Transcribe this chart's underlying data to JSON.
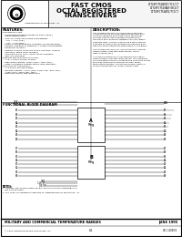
{
  "title_line1": "FAST CMOS",
  "title_line2": "OCTAL REGISTERED",
  "title_line3": "TRANSCEIVERS",
  "part_numbers": [
    "IDT29FCT52ATQF/TC1/CT",
    "IDT29FCT52SAQF/BC1CT",
    "IDT29FCT52ATQ/TC1CT"
  ],
  "features_title": "FEATURES:",
  "features": [
    "Exceptionally fast:",
    " - Input/output/output leakage of ±5μA (max.)",
    " - CMOS power levels",
    " - True TTL input and output compatibility",
    "   - VIH = 2.0V (typ.)",
    "   - VOL = 0.5V (typ.)",
    " - Meets or exceeds JEDEC standard 18 specifications",
    " - Product available in Radiation 1 Series and Radiation",
    "   Enhanced versions",
    " - Military product conforms to MIL-STD-883, Class B",
    "   and DESC listed (dual marked)",
    " - Available in SIP, SOIC, SSOP, QSOP, DIP/PDIP",
    "   and LCC packages",
    "Features two MOS transistor pull:",
    " - A, B, C and G control grades",
    " - High drive outputs: 24mA (6mA, 12mA typ.)",
    " - Power of disable outputs select \"bus retention\"",
    "Excellent for 1553/1553T:",
    " - A, B and G system grades",
    " - Receive outputs: +1mA (min. 12mA typ., 6mA typ.)",
    "   +4mA (min. 12mA typ., 8B1.)",
    " - Reduced system switching noise"
  ],
  "desc_title": "DESCRIPTION:",
  "desc_lines": [
    "The IDT29FCT52ATRC1/CT and IDT29FCT52ATIS1-",
    "CT are B-S pin-to-pin compatible transceivers built",
    "using an advanced dual metal CMOS technology.",
    "Fast-Bus back-to-back registers simultaneously",
    "running in both directions between two subsystems.",
    "Separate store, communication and B state outputs",
    "available externally are provided for maximun Bus A",
    "transfers and B outputs are guaranteed to sink B4mA.",
    "",
    "The IDT29FCT52ATRC1/CT has autonomous outputs",
    "approximately 10ns switching options, similar",
    "IDT29FCT52BT1/BC1.",
    "",
    "As a bus/FCT52BT1C1/CT has autonomous outputs",
    "approximately 10ns switching options. This advanced",
    "pin compatible minimal undefined and controlled output",
    "fall times reducing the need for external series",
    "terminating resistors. The IDT29FCT52BG1 part is a",
    "plug-in replacement for IDT29FCT52BT1 part."
  ],
  "block_diagram_title": "FUNCTIONAL BLOCK DIAGRAM",
  "block_diagram_super": "2,3",
  "left_labels_top": [
    "OEA",
    "OEB",
    "A0",
    "A1",
    "A2",
    "A3",
    "A4",
    "A5",
    "A6",
    "A7"
  ],
  "right_labels_top": [
    "SAB",
    "B0",
    "B1",
    "B2",
    "B3",
    "B4",
    "B5",
    "B6",
    "B7"
  ],
  "left_labels_bot": [
    "OEB",
    "B0",
    "B1",
    "B2",
    "B3",
    "B4",
    "B5",
    "B6",
    "B7"
  ],
  "right_labels_bot": [
    "A0",
    "A1",
    "A2",
    "A3",
    "A4",
    "A5",
    "A6",
    "A7"
  ],
  "ctrl_labels": [
    "CLK",
    "OE",
    "CLK SP",
    "OE SP"
  ],
  "notes": [
    "NOTES:",
    "1. Includes input source control SELECT function in mode: OEB/OEBA is a",
    "   Bus-holding option.",
    "2. FCT Logo is a registered trademark of Integrated Device Technology, Inc."
  ],
  "footer_left": "MILITARY AND COMMERCIAL TEMPERATURE RANGES",
  "footer_right": "JUNE 1995",
  "footer_copy": "© 1996 Integrated Device Technology, Inc.",
  "footer_page": "8-1",
  "footer_doc": "DSC-10050/1",
  "background_color": "#ffffff",
  "border_color": "#000000"
}
